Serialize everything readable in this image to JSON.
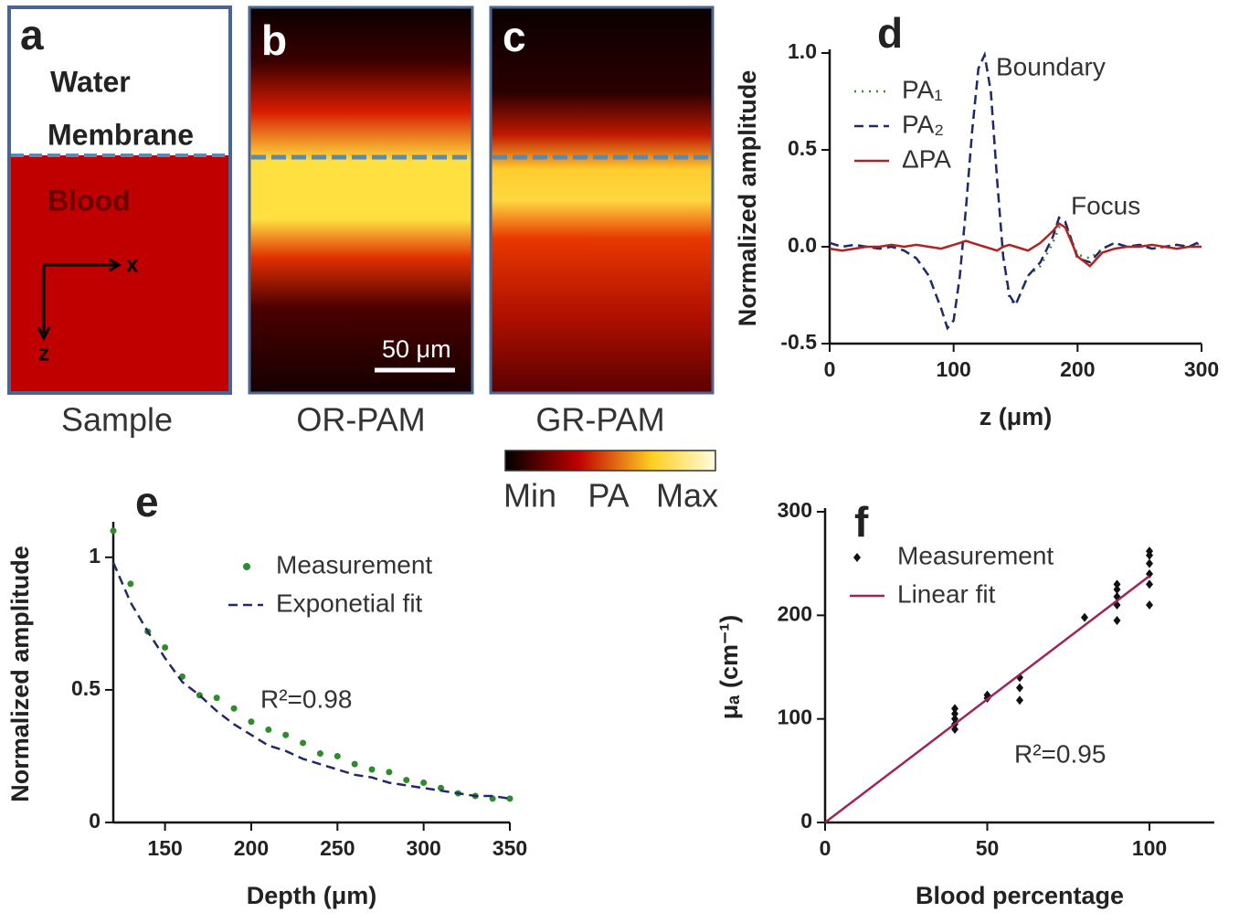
{
  "panels": {
    "a": {
      "label": "a",
      "water": "Water",
      "membrane": "Membrane",
      "blood": "Blood",
      "x_axis": "x",
      "z_axis": "z",
      "caption": "Sample"
    },
    "b": {
      "label": "b",
      "scale_bar": "50 μm",
      "caption": "OR-PAM"
    },
    "c": {
      "label": "c",
      "caption": "GR-PAM"
    },
    "colorbar": {
      "min": "Min",
      "label": "PA",
      "max": "Max"
    }
  },
  "chart_data": [
    {
      "type": "line",
      "panel_label": "d",
      "xlabel": "z (μm)",
      "ylabel": "Normalized amplitude",
      "annotations": [
        "Boundary",
        "Focus"
      ],
      "x": [
        0,
        10,
        20,
        30,
        40,
        50,
        60,
        70,
        80,
        90,
        95,
        100,
        105,
        110,
        115,
        120,
        125,
        130,
        135,
        140,
        145,
        150,
        160,
        170,
        180,
        185,
        190,
        200,
        210,
        220,
        230,
        240,
        250,
        260,
        270,
        280,
        290,
        300
      ],
      "series": [
        {
          "name": "PA₁",
          "color": "#3a8a3a",
          "dash": "dotted",
          "values": [
            0.02,
            0.0,
            0.01,
            0.0,
            -0.01,
            0.0,
            -0.02,
            -0.06,
            -0.15,
            -0.32,
            -0.42,
            -0.38,
            -0.15,
            0.2,
            0.6,
            0.92,
            0.99,
            0.8,
            0.35,
            -0.05,
            -0.27,
            -0.3,
            -0.15,
            -0.1,
            0.02,
            0.1,
            0.12,
            -0.04,
            -0.06,
            -0.01,
            0.02,
            0.0,
            0.01,
            -0.01,
            0.0,
            0.01,
            0.0,
            0.02
          ]
        },
        {
          "name": "PA₂",
          "color": "#1f2a6b",
          "dash": "dashed",
          "values": [
            0.02,
            0.0,
            0.01,
            0.0,
            -0.01,
            0.0,
            -0.02,
            -0.06,
            -0.15,
            -0.32,
            -0.42,
            -0.38,
            -0.15,
            0.2,
            0.6,
            0.92,
            0.99,
            0.8,
            0.35,
            -0.05,
            -0.25,
            -0.3,
            -0.15,
            -0.08,
            0.05,
            0.15,
            0.13,
            -0.06,
            -0.08,
            -0.01,
            0.02,
            0.0,
            0.01,
            -0.01,
            0.0,
            0.01,
            0.0,
            0.03
          ]
        },
        {
          "name": "ΔPA",
          "color": "#b22222",
          "dash": "solid",
          "values": [
            -0.01,
            -0.02,
            -0.01,
            0,
            0,
            0.01,
            0,
            0.01,
            0,
            -0.01,
            0,
            0.01,
            0.02,
            0.03,
            0.02,
            0.01,
            0.0,
            -0.01,
            -0.02,
            0,
            0.01,
            0.0,
            -0.02,
            0.02,
            0.08,
            0.12,
            0.1,
            -0.05,
            -0.1,
            -0.03,
            -0.01,
            0.0,
            0.0,
            0.01,
            0.0,
            -0.01,
            0.0,
            0.0
          ]
        }
      ],
      "xlim": [
        0,
        300
      ],
      "xticks": [
        0,
        100,
        200,
        300
      ],
      "ylim": [
        -0.5,
        1
      ],
      "yticks": [
        -0.5,
        {
          "value": 0,
          "label": "0.0"
        },
        0.5,
        {
          "value": 1,
          "label": "1.0"
        }
      ],
      "legend": "upper left",
      "grid": false
    },
    {
      "type": "scatter",
      "panel_label": "e",
      "xlabel": "Depth (μm)",
      "ylabel": "Normalized amplitude",
      "annotations": [
        "R²=0.98"
      ],
      "series": [
        {
          "name": "Measurement",
          "type": "scatter",
          "marker": "circle",
          "color": "#2e8b2e",
          "x": [
            120,
            130,
            140,
            150,
            160,
            170,
            180,
            190,
            200,
            210,
            220,
            230,
            240,
            250,
            260,
            270,
            280,
            290,
            300,
            310,
            320,
            330,
            340,
            350
          ],
          "values": [
            1.1,
            0.9,
            0.72,
            0.66,
            0.55,
            0.48,
            0.47,
            0.43,
            0.38,
            0.35,
            0.33,
            0.3,
            0.26,
            0.25,
            0.22,
            0.2,
            0.19,
            0.16,
            0.15,
            0.13,
            0.11,
            0.1,
            0.09,
            0.09
          ]
        },
        {
          "name": "Exponetial fit",
          "type": "line",
          "dash": "dashed",
          "color": "#1f2a6b",
          "x": [
            120,
            130,
            140,
            150,
            160,
            170,
            180,
            190,
            200,
            210,
            220,
            230,
            240,
            250,
            260,
            270,
            280,
            290,
            300,
            310,
            320,
            330,
            340,
            350
          ],
          "values": [
            0.98,
            0.83,
            0.72,
            0.62,
            0.53,
            0.48,
            0.42,
            0.37,
            0.33,
            0.29,
            0.27,
            0.24,
            0.22,
            0.2,
            0.18,
            0.17,
            0.15,
            0.14,
            0.13,
            0.12,
            0.11,
            0.1,
            0.1,
            0.09
          ]
        }
      ],
      "xlim": [
        120,
        350
      ],
      "xticks": [
        150,
        200,
        250,
        300,
        350
      ],
      "ylim": [
        0,
        1.12
      ],
      "yticks": [
        0,
        0.5,
        1
      ],
      "legend": "upper right",
      "grid": false
    },
    {
      "type": "scatter",
      "panel_label": "f",
      "xlabel": "Blood percentage",
      "ylabel": "μₐ (cm⁻¹)",
      "annotations": [
        "R²=0.95"
      ],
      "series": [
        {
          "name": "Measurement",
          "type": "scatter",
          "marker": "diamond",
          "color": "#111111",
          "x": [
            40,
            40,
            40,
            40,
            40,
            50,
            50,
            60,
            60,
            60,
            80,
            90,
            90,
            90,
            90,
            90,
            100,
            100,
            100,
            100,
            100,
            100
          ],
          "values": [
            90,
            95,
            100,
            105,
            110,
            120,
            123,
            118,
            130,
            140,
            198,
            195,
            210,
            218,
            225,
            230,
            210,
            230,
            240,
            250,
            258,
            262
          ]
        },
        {
          "name": "Linear fit",
          "type": "line",
          "dash": "solid",
          "color": "#a0245a",
          "x": [
            0,
            100
          ],
          "values": [
            0,
            238
          ]
        }
      ],
      "xlim": [
        0,
        120
      ],
      "xticks": [
        0,
        50,
        100
      ],
      "ylim": [
        0,
        300
      ],
      "yticks": [
        0,
        100,
        200,
        300
      ],
      "legend": "upper left",
      "grid": false
    }
  ]
}
